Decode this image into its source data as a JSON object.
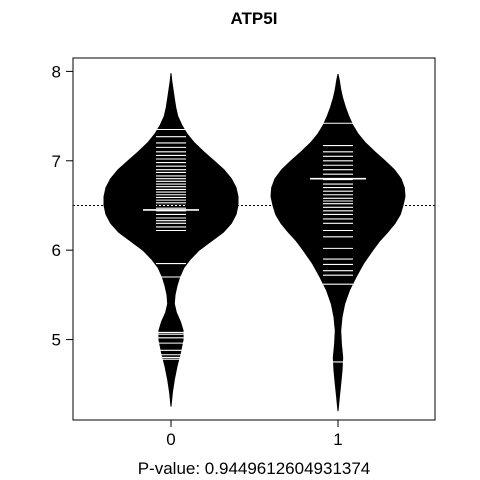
{
  "chart_data": {
    "type": "beanplot",
    "title": "ATP5I",
    "xlabel": "P-value: 0.9449612604931374",
    "ylabel": "",
    "categories": [
      "0",
      "1"
    ],
    "ylim": [
      4.1,
      8.15
    ],
    "y_ticks": [
      5,
      6,
      7,
      8
    ],
    "y_tick_labels": [
      "5",
      "6",
      "7",
      "8"
    ],
    "overall_mean": 6.5,
    "groups": [
      {
        "category": "0",
        "mean": 6.45,
        "density": [
          [
            4.25,
            0
          ],
          [
            4.4,
            0.02
          ],
          [
            4.55,
            0.05
          ],
          [
            4.7,
            0.09
          ],
          [
            4.85,
            0.14
          ],
          [
            5.0,
            0.18
          ],
          [
            5.1,
            0.18
          ],
          [
            5.2,
            0.14
          ],
          [
            5.3,
            0.08
          ],
          [
            5.4,
            0.05
          ],
          [
            5.5,
            0.06
          ],
          [
            5.6,
            0.09
          ],
          [
            5.7,
            0.13
          ],
          [
            5.8,
            0.19
          ],
          [
            5.9,
            0.29
          ],
          [
            6.0,
            0.42
          ],
          [
            6.1,
            0.6
          ],
          [
            6.2,
            0.78
          ],
          [
            6.3,
            0.9
          ],
          [
            6.4,
            0.97
          ],
          [
            6.5,
            1.0
          ],
          [
            6.6,
            1.0
          ],
          [
            6.7,
            0.97
          ],
          [
            6.8,
            0.9
          ],
          [
            6.9,
            0.79
          ],
          [
            7.0,
            0.64
          ],
          [
            7.1,
            0.49
          ],
          [
            7.2,
            0.35
          ],
          [
            7.3,
            0.24
          ],
          [
            7.4,
            0.16
          ],
          [
            7.5,
            0.1
          ],
          [
            7.6,
            0.07
          ],
          [
            7.7,
            0.05
          ],
          [
            7.8,
            0.03
          ],
          [
            7.9,
            0.01
          ],
          [
            7.98,
            0
          ]
        ],
        "points": [
          4.78,
          4.8,
          4.83,
          4.88,
          4.96,
          5.02,
          5.06,
          5.08,
          5.7,
          5.85,
          6.22,
          6.26,
          6.3,
          6.33,
          6.36,
          6.4,
          6.44,
          6.47,
          6.5,
          6.53,
          6.56,
          6.59,
          6.62,
          6.65,
          6.68,
          6.71,
          6.74,
          6.77,
          6.8,
          6.83,
          6.87,
          6.9,
          6.94,
          6.98,
          7.02,
          7.06,
          7.1,
          7.15,
          7.2,
          7.27,
          7.35
        ]
      },
      {
        "category": "1",
        "mean": 6.8,
        "density": [
          [
            4.2,
            0
          ],
          [
            4.35,
            0.02
          ],
          [
            4.5,
            0.04
          ],
          [
            4.65,
            0.06
          ],
          [
            4.8,
            0.07
          ],
          [
            4.95,
            0.05
          ],
          [
            5.1,
            0.04
          ],
          [
            5.25,
            0.06
          ],
          [
            5.4,
            0.1
          ],
          [
            5.55,
            0.17
          ],
          [
            5.7,
            0.27
          ],
          [
            5.85,
            0.38
          ],
          [
            6.0,
            0.52
          ],
          [
            6.1,
            0.62
          ],
          [
            6.2,
            0.74
          ],
          [
            6.3,
            0.85
          ],
          [
            6.4,
            0.93
          ],
          [
            6.5,
            0.97
          ],
          [
            6.6,
            1.0
          ],
          [
            6.7,
            0.99
          ],
          [
            6.8,
            0.94
          ],
          [
            6.9,
            0.84
          ],
          [
            7.0,
            0.7
          ],
          [
            7.1,
            0.55
          ],
          [
            7.2,
            0.41
          ],
          [
            7.3,
            0.3
          ],
          [
            7.4,
            0.22
          ],
          [
            7.5,
            0.16
          ],
          [
            7.6,
            0.11
          ],
          [
            7.7,
            0.07
          ],
          [
            7.8,
            0.04
          ],
          [
            7.9,
            0.02
          ],
          [
            7.97,
            0
          ]
        ],
        "points": [
          4.75,
          5.62,
          5.72,
          5.77,
          5.84,
          5.9,
          6.02,
          6.15,
          6.22,
          6.3,
          6.35,
          6.4,
          6.44,
          6.48,
          6.52,
          6.55,
          6.58,
          6.62,
          6.66,
          6.7,
          6.74,
          6.79,
          6.85,
          6.9,
          6.95,
          7.0,
          7.05,
          7.1,
          7.17,
          7.42
        ]
      }
    ]
  }
}
